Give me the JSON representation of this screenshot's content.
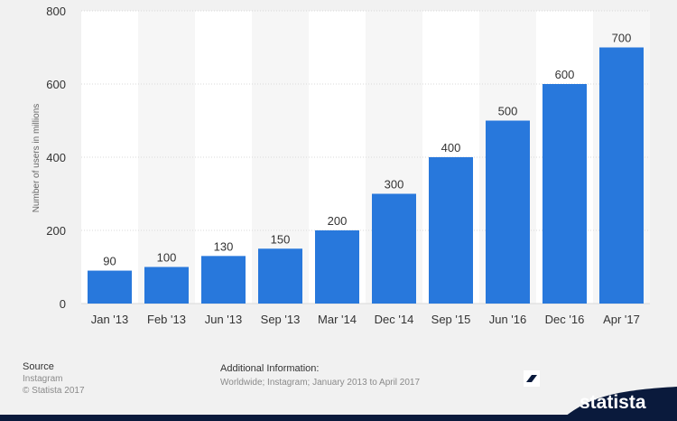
{
  "colors": {
    "bar": "#2878dc",
    "plot_bg_light": "#ffffff",
    "plot_bg_dark": "#f6f6f6",
    "grid": "#d9d9d9",
    "brand": "#0a1a3c"
  },
  "chart_data": {
    "type": "bar",
    "categories": [
      "Jan '13",
      "Feb '13",
      "Jun '13",
      "Sep '13",
      "Mar '14",
      "Dec '14",
      "Sep '15",
      "Jun '16",
      "Dec '16",
      "Apr '17"
    ],
    "values": [
      90,
      100,
      130,
      150,
      200,
      300,
      400,
      500,
      600,
      700
    ],
    "ylabel": "Number of users in millions",
    "ylim": [
      0,
      800
    ],
    "yticks": [
      0,
      200,
      400,
      600,
      800
    ],
    "grid": true
  },
  "footer": {
    "source_heading": "Source",
    "source_lines": [
      "Instagram",
      "© Statista 2017"
    ],
    "info_heading": "Additional Information:",
    "info_text": "Worldwide; Instagram; January 2013 to April 2017"
  },
  "brand": {
    "name": "statista"
  }
}
